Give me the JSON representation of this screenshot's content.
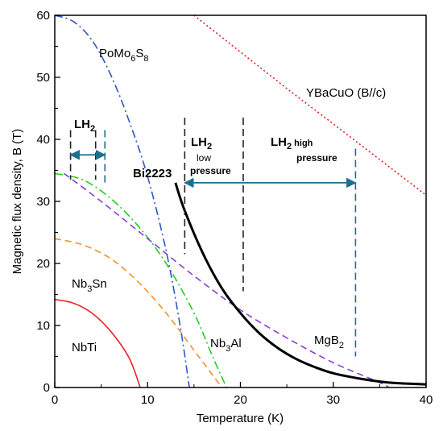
{
  "chart_data": {
    "type": "line",
    "title": "",
    "xlabel": "Temperature (K)",
    "ylabel": "Magnetic flux density, B (T)",
    "xlim": [
      0,
      40
    ],
    "ylim": [
      0,
      60
    ],
    "x_ticks": [
      "0",
      "10",
      "20",
      "30",
      "40"
    ],
    "y_ticks": [
      "0",
      "10",
      "20",
      "30",
      "40",
      "50",
      "60"
    ],
    "grid": false,
    "legend": "none (series labeled inline)",
    "series": [
      {
        "name": "NbTi",
        "color": "#e8242b",
        "style": "solid",
        "points": [
          [
            0,
            14.2
          ],
          [
            2,
            13.6
          ],
          [
            4,
            12.0
          ],
          [
            6,
            9.1
          ],
          [
            8,
            4.8
          ],
          [
            9.2,
            0
          ]
        ]
      },
      {
        "name": "Nb3Sn",
        "color": "#f0922c",
        "style": "dashed",
        "points": [
          [
            0,
            24
          ],
          [
            3,
            23
          ],
          [
            6,
            20.8
          ],
          [
            9,
            17
          ],
          [
            12,
            12
          ],
          [
            15,
            6
          ],
          [
            17.5,
            1
          ],
          [
            18,
            0
          ]
        ]
      },
      {
        "name": "Nb3Al",
        "color": "#22cc22",
        "style": "dashdot",
        "points": [
          [
            0,
            34.5
          ],
          [
            3,
            33.5
          ],
          [
            6,
            30.5
          ],
          [
            9,
            26
          ],
          [
            12,
            20
          ],
          [
            15,
            12
          ],
          [
            17,
            5
          ],
          [
            18.5,
            0
          ]
        ]
      },
      {
        "name": "PoMo6S8",
        "color": "#2f55c0",
        "style": "dashdot",
        "points": [
          [
            0,
            60
          ],
          [
            2,
            59
          ],
          [
            4,
            56
          ],
          [
            6,
            50.5
          ],
          [
            8,
            43
          ],
          [
            10,
            34
          ],
          [
            12,
            22
          ],
          [
            13.5,
            10
          ],
          [
            14.5,
            0
          ]
        ]
      },
      {
        "name": "MgB2",
        "color": "#8a3fd8",
        "style": "dashed",
        "points": [
          [
            1,
            34.5
          ],
          [
            5,
            30
          ],
          [
            10,
            24
          ],
          [
            15,
            18
          ],
          [
            20,
            12.5
          ],
          [
            25,
            8
          ],
          [
            30,
            4
          ],
          [
            35,
            0.8
          ],
          [
            36,
            0
          ]
        ]
      },
      {
        "name": "Bi2223",
        "color": "#000000",
        "style": "solid",
        "points": [
          [
            13,
            33
          ],
          [
            14,
            28.5
          ],
          [
            16,
            21.5
          ],
          [
            18,
            16
          ],
          [
            20,
            12
          ],
          [
            22,
            8.8
          ],
          [
            24,
            6.4
          ],
          [
            26,
            4.6
          ],
          [
            28,
            3.3
          ],
          [
            30,
            2.3
          ],
          [
            33,
            1.4
          ],
          [
            36,
            0.8
          ],
          [
            40,
            0.5
          ]
        ]
      },
      {
        "name": "YBaCuO (B//c)",
        "color": "#e02020",
        "style": "dotted",
        "points": [
          [
            15,
            60
          ],
          [
            25,
            48.2
          ],
          [
            30,
            42.5
          ],
          [
            40,
            31
          ]
        ]
      }
    ],
    "lh2_ranges": [
      {
        "label": "LH2",
        "from": 1.7,
        "to": 5.4,
        "markers": [
          1.7,
          4.4,
          5.4
        ],
        "y": 37.5
      },
      {
        "label": "LH2 low pressure",
        "from": 14,
        "to": 20.3,
        "markers": [
          14,
          20.3
        ],
        "y": 33
      },
      {
        "label": "LH2 high pressure",
        "from": 20.3,
        "to": 32.4,
        "markers": [
          32.4
        ],
        "y": 33
      }
    ]
  },
  "labels": {
    "pomo": {
      "a": "PoMo",
      "b": "6",
      "c": "S",
      "d": "8"
    },
    "ybco": "YBaCuO (B//c)",
    "lh2_left": {
      "a": "LH",
      "b": "2"
    },
    "lh2_low": {
      "a": "LH",
      "b": "2",
      "c": "low",
      "d": "pressure"
    },
    "lh2_high": {
      "a": "LH",
      "b": "2",
      "c": " high",
      "d": "pressure"
    },
    "bi2223": "Bi2223",
    "nb3sn": {
      "a": "Nb",
      "b": "3",
      "c": "Sn"
    },
    "nbti": "NbTi",
    "nb3al": {
      "a": "Nb",
      "b": "3",
      "c": "Al"
    },
    "mgb2": {
      "a": "MgB",
      "b": "2"
    }
  },
  "colors": {
    "arrow": "#1f6f8b",
    "marker_dark": "#222222",
    "marker_teal": "#1f6f8b"
  }
}
